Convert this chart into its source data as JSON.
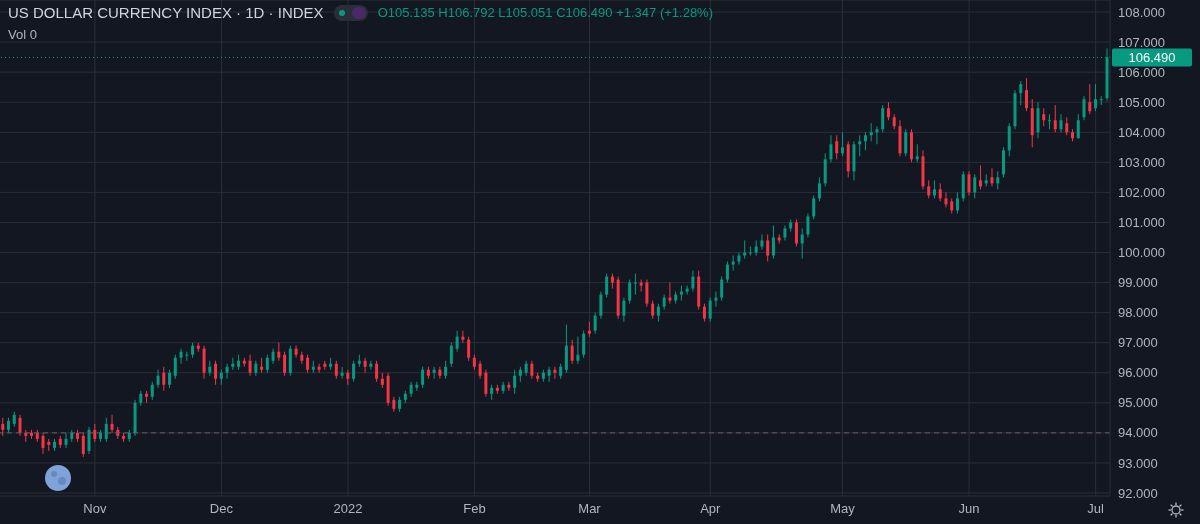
{
  "chart_data": {
    "type": "candlestick",
    "title": "US DOLLAR CURRENCY INDEX · 1D · INDEX",
    "annotations": [
      "O105.135 H106.792 L105.051 C106.490 +1.347 (+1.28%)",
      "Vol 0"
    ],
    "categories": [
      null,
      null,
      null,
      null,
      null,
      null,
      null,
      null,
      null,
      null,
      null,
      null,
      null,
      null,
      null,
      null,
      "Nov",
      null,
      null,
      null,
      null,
      null,
      null,
      null,
      null,
      null,
      null,
      null,
      null,
      null,
      null,
      null,
      null,
      null,
      null,
      null,
      null,
      null,
      "Dec",
      null,
      null,
      null,
      null,
      null,
      null,
      null,
      null,
      null,
      null,
      null,
      null,
      null,
      null,
      null,
      null,
      null,
      null,
      null,
      null,
      null,
      "2022",
      null,
      null,
      null,
      null,
      null,
      null,
      null,
      null,
      null,
      null,
      null,
      null,
      null,
      null,
      null,
      null,
      null,
      null,
      null,
      null,
      null,
      "Feb",
      null,
      null,
      null,
      null,
      null,
      null,
      null,
      null,
      null,
      null,
      null,
      null,
      null,
      null,
      null,
      null,
      null,
      null,
      null,
      "Mar",
      null,
      null,
      null,
      null,
      null,
      null,
      null,
      null,
      null,
      null,
      null,
      null,
      null,
      null,
      null,
      null,
      null,
      null,
      null,
      null,
      "Apr",
      null,
      null,
      null,
      null,
      null,
      null,
      null,
      null,
      null,
      null,
      null,
      null,
      null,
      null,
      null,
      null,
      null,
      null,
      null,
      null,
      null,
      null,
      "May",
      null,
      null,
      null,
      null,
      null,
      null,
      null,
      null,
      null,
      null,
      null,
      null,
      null,
      null,
      null,
      null,
      null,
      null,
      null,
      null,
      null,
      "Jun",
      null,
      null,
      null,
      null,
      null,
      null,
      null,
      null,
      null,
      null,
      null,
      null,
      null,
      null,
      null,
      null,
      null,
      null,
      null,
      null,
      null,
      "Jul",
      null,
      null
    ],
    "ohlc": [
      [
        94.3,
        94.5,
        93.9,
        94.1
      ],
      [
        94.1,
        94.5,
        94.0,
        94.4
      ],
      [
        94.3,
        94.7,
        94.2,
        94.6
      ],
      [
        94.5,
        94.6,
        93.9,
        94.0
      ],
      [
        94.0,
        94.1,
        93.7,
        93.9
      ],
      [
        94.0,
        94.1,
        93.8,
        93.9
      ],
      [
        94.0,
        94.1,
        93.7,
        93.8
      ],
      [
        93.9,
        94.0,
        93.3,
        93.5
      ],
      [
        93.7,
        93.8,
        93.4,
        93.6
      ],
      [
        93.5,
        93.8,
        93.4,
        93.7
      ],
      [
        93.8,
        93.9,
        93.5,
        93.6
      ],
      [
        93.6,
        94.0,
        93.5,
        93.8
      ],
      [
        93.8,
        94.1,
        93.7,
        94.0
      ],
      [
        94.0,
        94.1,
        93.7,
        93.8
      ],
      [
        93.9,
        94.0,
        93.2,
        93.3
      ],
      [
        93.4,
        94.2,
        93.3,
        94.1
      ],
      [
        94.1,
        94.3,
        93.7,
        93.8
      ],
      [
        93.8,
        94.1,
        93.7,
        94.0
      ],
      [
        93.8,
        94.5,
        93.7,
        94.3
      ],
      [
        94.3,
        94.6,
        94.0,
        94.1
      ],
      [
        94.1,
        94.2,
        93.8,
        93.9
      ],
      [
        93.9,
        94.0,
        93.7,
        93.8
      ],
      [
        93.8,
        94.1,
        93.7,
        94.0
      ],
      [
        94.0,
        95.1,
        93.9,
        95.0
      ],
      [
        95.0,
        95.4,
        94.9,
        95.3
      ],
      [
        95.3,
        95.4,
        95.0,
        95.2
      ],
      [
        95.2,
        95.7,
        95.1,
        95.6
      ],
      [
        95.6,
        96.1,
        95.5,
        95.9
      ],
      [
        96.0,
        96.2,
        95.4,
        95.6
      ],
      [
        95.6,
        96.1,
        95.5,
        96.0
      ],
      [
        95.9,
        96.6,
        95.8,
        96.5
      ],
      [
        96.5,
        96.8,
        96.3,
        96.7
      ],
      [
        96.6,
        96.7,
        96.4,
        96.6
      ],
      [
        96.6,
        97.0,
        96.5,
        96.9
      ],
      [
        96.9,
        97.0,
        96.7,
        96.8
      ],
      [
        96.8,
        96.9,
        95.8,
        96.0
      ],
      [
        96.0,
        96.4,
        95.9,
        96.2
      ],
      [
        96.3,
        96.4,
        95.6,
        95.8
      ],
      [
        95.8,
        96.1,
        95.6,
        96.0
      ],
      [
        96.0,
        96.3,
        95.8,
        96.2
      ],
      [
        96.2,
        96.5,
        96.1,
        96.3
      ],
      [
        96.2,
        96.6,
        96.1,
        96.4
      ],
      [
        96.4,
        96.5,
        96.2,
        96.3
      ],
      [
        96.4,
        96.6,
        95.9,
        96.0
      ],
      [
        96.0,
        96.4,
        95.9,
        96.3
      ],
      [
        96.2,
        96.5,
        96.0,
        96.1
      ],
      [
        96.1,
        96.6,
        96.0,
        96.5
      ],
      [
        96.4,
        96.8,
        96.3,
        96.7
      ],
      [
        96.7,
        97.0,
        96.4,
        96.5
      ],
      [
        96.6,
        96.7,
        95.9,
        96.0
      ],
      [
        96.0,
        96.9,
        95.9,
        96.8
      ],
      [
        96.8,
        96.9,
        96.5,
        96.6
      ],
      [
        96.6,
        96.7,
        96.3,
        96.4
      ],
      [
        96.5,
        96.6,
        96.0,
        96.1
      ],
      [
        96.1,
        96.4,
        96.0,
        96.2
      ],
      [
        96.2,
        96.3,
        96.0,
        96.1
      ],
      [
        96.3,
        96.4,
        96.1,
        96.2
      ],
      [
        96.2,
        96.5,
        96.1,
        96.3
      ],
      [
        96.3,
        96.4,
        95.8,
        95.9
      ],
      [
        95.9,
        96.2,
        95.8,
        96.0
      ],
      [
        96.0,
        96.1,
        95.6,
        95.8
      ],
      [
        95.8,
        96.4,
        95.7,
        96.3
      ],
      [
        96.3,
        96.6,
        96.2,
        96.4
      ],
      [
        96.4,
        96.5,
        96.0,
        96.2
      ],
      [
        96.2,
        96.4,
        96.1,
        96.3
      ],
      [
        96.3,
        96.4,
        95.7,
        95.8
      ],
      [
        95.8,
        96.0,
        95.5,
        95.6
      ],
      [
        95.9,
        96.0,
        94.9,
        95.0
      ],
      [
        95.1,
        95.2,
        94.7,
        94.8
      ],
      [
        94.8,
        95.2,
        94.7,
        95.1
      ],
      [
        95.1,
        95.4,
        95.0,
        95.3
      ],
      [
        95.3,
        95.7,
        95.2,
        95.6
      ],
      [
        95.5,
        95.7,
        95.4,
        95.6
      ],
      [
        95.6,
        96.2,
        95.5,
        96.1
      ],
      [
        96.1,
        96.2,
        95.8,
        95.9
      ],
      [
        96.0,
        96.2,
        95.8,
        96.1
      ],
      [
        96.1,
        96.2,
        95.8,
        95.9
      ],
      [
        95.9,
        96.4,
        95.8,
        96.2
      ],
      [
        96.3,
        97.0,
        96.2,
        96.9
      ],
      [
        96.8,
        97.4,
        96.7,
        97.2
      ],
      [
        97.2,
        97.4,
        97.0,
        97.1
      ],
      [
        97.1,
        97.2,
        96.4,
        96.5
      ],
      [
        96.5,
        96.6,
        96.1,
        96.2
      ],
      [
        96.3,
        96.4,
        95.8,
        95.9
      ],
      [
        96.0,
        96.1,
        95.2,
        95.3
      ],
      [
        95.3,
        95.6,
        95.1,
        95.5
      ],
      [
        95.5,
        95.6,
        95.3,
        95.4
      ],
      [
        95.4,
        95.7,
        95.3,
        95.6
      ],
      [
        95.6,
        95.7,
        95.4,
        95.5
      ],
      [
        95.5,
        96.1,
        95.3,
        95.9
      ],
      [
        95.9,
        96.2,
        95.7,
        96.1
      ],
      [
        96.0,
        96.4,
        95.9,
        96.3
      ],
      [
        96.3,
        96.4,
        95.8,
        95.9
      ],
      [
        95.9,
        96.0,
        95.7,
        95.8
      ],
      [
        95.8,
        96.1,
        95.7,
        96.0
      ],
      [
        95.9,
        96.2,
        95.7,
        96.1
      ],
      [
        96.1,
        96.2,
        95.8,
        96.0
      ],
      [
        95.9,
        96.3,
        95.8,
        96.2
      ],
      [
        96.1,
        97.6,
        96.0,
        96.9
      ],
      [
        96.9,
        97.1,
        96.3,
        96.4
      ],
      [
        96.4,
        97.2,
        96.3,
        96.6
      ],
      [
        96.6,
        97.4,
        96.5,
        97.3
      ],
      [
        97.4,
        97.7,
        97.2,
        97.3
      ],
      [
        97.4,
        98.0,
        97.3,
        97.9
      ],
      [
        97.9,
        98.7,
        97.8,
        98.6
      ],
      [
        98.6,
        99.3,
        98.5,
        99.2
      ],
      [
        99.2,
        99.3,
        98.8,
        99.0
      ],
      [
        99.1,
        99.2,
        97.8,
        97.9
      ],
      [
        97.9,
        98.5,
        97.7,
        98.4
      ],
      [
        98.4,
        99.1,
        98.3,
        99.0
      ],
      [
        99.0,
        99.3,
        98.6,
        99.0
      ],
      [
        99.0,
        99.1,
        98.7,
        98.9
      ],
      [
        99.0,
        99.1,
        98.2,
        98.3
      ],
      [
        98.3,
        98.4,
        97.8,
        97.9
      ],
      [
        97.9,
        98.3,
        97.7,
        98.2
      ],
      [
        98.2,
        98.6,
        98.1,
        98.5
      ],
      [
        98.5,
        99.0,
        98.3,
        98.4
      ],
      [
        98.4,
        98.7,
        98.3,
        98.6
      ],
      [
        98.6,
        98.9,
        98.4,
        98.7
      ],
      [
        98.7,
        98.9,
        98.6,
        98.8
      ],
      [
        98.8,
        99.4,
        98.7,
        99.2
      ],
      [
        99.2,
        99.4,
        98.1,
        98.2
      ],
      [
        98.2,
        98.3,
        97.7,
        97.8
      ],
      [
        97.8,
        98.5,
        97.7,
        98.4
      ],
      [
        98.4,
        98.7,
        98.2,
        98.5
      ],
      [
        98.5,
        99.2,
        98.4,
        99.1
      ],
      [
        99.1,
        99.7,
        99.0,
        99.6
      ],
      [
        99.6,
        99.9,
        99.4,
        99.7
      ],
      [
        99.7,
        100.0,
        99.6,
        99.9
      ],
      [
        99.9,
        100.4,
        99.8,
        100.0
      ],
      [
        100.0,
        100.2,
        99.9,
        100.0
      ],
      [
        100.0,
        100.4,
        99.9,
        100.2
      ],
      [
        100.2,
        100.6,
        100.1,
        100.4
      ],
      [
        100.4,
        100.6,
        99.7,
        99.9
      ],
      [
        99.9,
        100.9,
        99.8,
        100.5
      ],
      [
        100.5,
        100.6,
        100.3,
        100.4
      ],
      [
        100.5,
        100.9,
        100.4,
        100.8
      ],
      [
        100.8,
        101.1,
        100.7,
        101.0
      ],
      [
        101.0,
        101.1,
        100.2,
        100.3
      ],
      [
        100.3,
        100.8,
        99.8,
        100.6
      ],
      [
        100.6,
        101.3,
        100.5,
        101.2
      ],
      [
        101.2,
        101.9,
        101.1,
        101.8
      ],
      [
        101.8,
        102.5,
        101.7,
        102.3
      ],
      [
        102.3,
        103.3,
        102.2,
        103.1
      ],
      [
        103.1,
        103.9,
        103.0,
        103.6
      ],
      [
        103.7,
        103.9,
        103.1,
        103.3
      ],
      [
        103.3,
        104.0,
        103.2,
        103.5
      ],
      [
        103.6,
        103.7,
        102.5,
        102.7
      ],
      [
        102.7,
        103.7,
        102.4,
        103.6
      ],
      [
        103.6,
        103.9,
        103.2,
        103.7
      ],
      [
        103.7,
        104.0,
        103.4,
        103.9
      ],
      [
        103.9,
        104.3,
        103.7,
        104.0
      ],
      [
        104.0,
        104.2,
        103.6,
        104.1
      ],
      [
        104.1,
        104.9,
        104.0,
        104.8
      ],
      [
        104.8,
        105.0,
        104.4,
        104.5
      ],
      [
        104.5,
        104.6,
        104.1,
        104.2
      ],
      [
        104.2,
        104.4,
        103.2,
        103.3
      ],
      [
        103.3,
        104.1,
        103.2,
        104.0
      ],
      [
        104.0,
        104.1,
        103.0,
        103.1
      ],
      [
        103.1,
        103.6,
        103.0,
        103.2
      ],
      [
        103.2,
        103.4,
        102.1,
        102.2
      ],
      [
        102.2,
        102.4,
        101.8,
        101.9
      ],
      [
        101.9,
        102.4,
        101.8,
        102.1
      ],
      [
        102.1,
        102.3,
        101.7,
        101.8
      ],
      [
        101.8,
        102.0,
        101.5,
        101.6
      ],
      [
        101.7,
        101.8,
        101.3,
        101.4
      ],
      [
        101.4,
        102.0,
        101.3,
        101.8
      ],
      [
        101.8,
        102.7,
        101.7,
        102.6
      ],
      [
        102.6,
        102.7,
        101.9,
        102.0
      ],
      [
        102.0,
        102.6,
        101.8,
        102.5
      ],
      [
        102.4,
        102.9,
        102.1,
        102.2
      ],
      [
        102.3,
        102.6,
        102.2,
        102.4
      ],
      [
        102.5,
        102.8,
        102.2,
        102.3
      ],
      [
        102.3,
        102.7,
        102.1,
        102.5
      ],
      [
        102.6,
        103.5,
        102.5,
        103.4
      ],
      [
        103.4,
        104.3,
        103.2,
        104.2
      ],
      [
        104.2,
        105.4,
        104.1,
        105.3
      ],
      [
        105.3,
        105.7,
        104.9,
        105.6
      ],
      [
        105.4,
        105.8,
        104.7,
        104.8
      ],
      [
        104.8,
        105.1,
        103.5,
        103.9
      ],
      [
        104.0,
        105.0,
        103.8,
        104.8
      ],
      [
        104.6,
        104.8,
        104.2,
        104.4
      ],
      [
        104.4,
        104.6,
        104.1,
        104.4
      ],
      [
        104.4,
        104.9,
        104.0,
        104.1
      ],
      [
        104.1,
        104.6,
        104.0,
        104.4
      ],
      [
        104.3,
        104.5,
        103.9,
        104.0
      ],
      [
        104.0,
        104.1,
        103.7,
        103.8
      ],
      [
        103.8,
        104.6,
        103.8,
        104.4
      ],
      [
        104.5,
        105.2,
        104.4,
        105.1
      ],
      [
        105.0,
        105.6,
        104.6,
        104.7
      ],
      [
        104.8,
        105.6,
        104.7,
        105.1
      ],
      [
        105.1,
        105.2,
        104.9,
        105.1
      ],
      [
        105.135,
        106.792,
        105.051,
        106.49
      ]
    ],
    "colors": [
      "#f23645",
      "#089981",
      "#089981",
      "#f23645",
      "#f23645",
      "#f23645",
      "#f23645",
      "#f23645",
      "#f23645",
      "#089981",
      "#f23645",
      "#089981",
      "#089981",
      "#f23645",
      "#f23645",
      "#089981",
      "#f23645",
      "#089981",
      "#089981",
      "#f23645",
      "#f23645",
      "#f23645",
      "#089981",
      "#089981",
      "#089981",
      "#f23645",
      "#089981",
      "#089981",
      "#f23645",
      "#089981",
      "#089981",
      "#089981",
      "#089981",
      "#089981",
      "#f23645",
      "#f23645",
      "#089981",
      "#f23645",
      "#089981",
      "#089981",
      "#089981",
      "#089981",
      "#f23645",
      "#f23645",
      "#089981",
      "#f23645",
      "#089981",
      "#089981",
      "#f23645",
      "#f23645",
      "#089981",
      "#f23645",
      "#f23645",
      "#f23645",
      "#089981",
      "#f23645",
      "#f23645",
      "#089981",
      "#f23645",
      "#089981",
      "#f23645",
      "#089981",
      "#089981",
      "#f23645",
      "#089981",
      "#f23645",
      "#f23645",
      "#f23645",
      "#f23645",
      "#089981",
      "#089981",
      "#089981",
      "#089981",
      "#089981",
      "#f23645",
      "#089981",
      "#f23645",
      "#089981",
      "#089981",
      "#089981",
      "#f23645",
      "#f23645",
      "#f23645",
      "#f23645",
      "#f23645",
      "#089981",
      "#f23645",
      "#089981",
      "#f23645",
      "#089981",
      "#089981",
      "#089981",
      "#f23645",
      "#f23645",
      "#089981",
      "#089981",
      "#f23645",
      "#089981",
      "#089981",
      "#f23645",
      "#089981",
      "#089981",
      "#f23645",
      "#089981",
      "#089981",
      "#089981",
      "#f23645",
      "#f23645",
      "#089981",
      "#089981",
      "#089981",
      "#f23645",
      "#f23645",
      "#f23645",
      "#089981",
      "#089981",
      "#f23645",
      "#089981",
      "#089981",
      "#089981",
      "#089981",
      "#f23645",
      "#f23645",
      "#089981",
      "#089981",
      "#089981",
      "#089981",
      "#089981",
      "#089981",
      "#089981",
      "#089981",
      "#089981",
      "#089981",
      "#f23645",
      "#089981",
      "#f23645",
      "#089981",
      "#089981",
      "#f23645",
      "#089981",
      "#089981",
      "#089981",
      "#089981",
      "#089981",
      "#089981",
      "#f23645",
      "#089981",
      "#f23645",
      "#089981",
      "#089981",
      "#089981",
      "#089981",
      "#089981",
      "#089981",
      "#f23645",
      "#f23645",
      "#f23645",
      "#089981",
      "#f23645",
      "#089981",
      "#f23645",
      "#f23645",
      "#089981",
      "#f23645",
      "#f23645",
      "#f23645",
      "#089981",
      "#089981",
      "#f23645",
      "#089981",
      "#f23645",
      "#089981",
      "#f23645",
      "#089981",
      "#089981",
      "#089981",
      "#089981",
      "#089981",
      "#f23645",
      "#f23645",
      "#089981",
      "#f23645",
      "#089981",
      "#f23645",
      "#089981",
      "#f23645",
      "#f23645",
      "#089981",
      "#089981",
      "#f23645",
      "#089981",
      "#089981",
      "#089981"
    ],
    "ylim": [
      91.9,
      108.4
    ],
    "yticks": [
      {
        "value": 92,
        "label": "92.000"
      },
      {
        "value": 93,
        "label": "93.000"
      },
      {
        "value": 94,
        "label": "94.000"
      },
      {
        "value": 95,
        "label": "95.000"
      },
      {
        "value": 96,
        "label": "96.000"
      },
      {
        "value": 97,
        "label": "97.000"
      },
      {
        "value": 98,
        "label": "98.000"
      },
      {
        "value": 99,
        "label": "99.000"
      },
      {
        "value": 100,
        "label": "100.000"
      },
      {
        "value": 101,
        "label": "101.000"
      },
      {
        "value": 102,
        "label": "102.000"
      },
      {
        "value": 103,
        "label": "103.000"
      },
      {
        "value": 104,
        "label": "104.000"
      },
      {
        "value": 105,
        "label": "105.000"
      },
      {
        "value": 106,
        "label": "106.000"
      },
      {
        "value": 107,
        "label": "107.000"
      },
      {
        "value": 108,
        "label": "108.000"
      }
    ],
    "ref_lines": [
      {
        "axis": "y",
        "value": 106.49,
        "label": "106.490",
        "color": "#089981",
        "line_style": "dotted"
      },
      {
        "axis": "y",
        "value": 94,
        "color": "#6a5a66",
        "line_style": "dashed"
      }
    ],
    "grid": true
  }
}
